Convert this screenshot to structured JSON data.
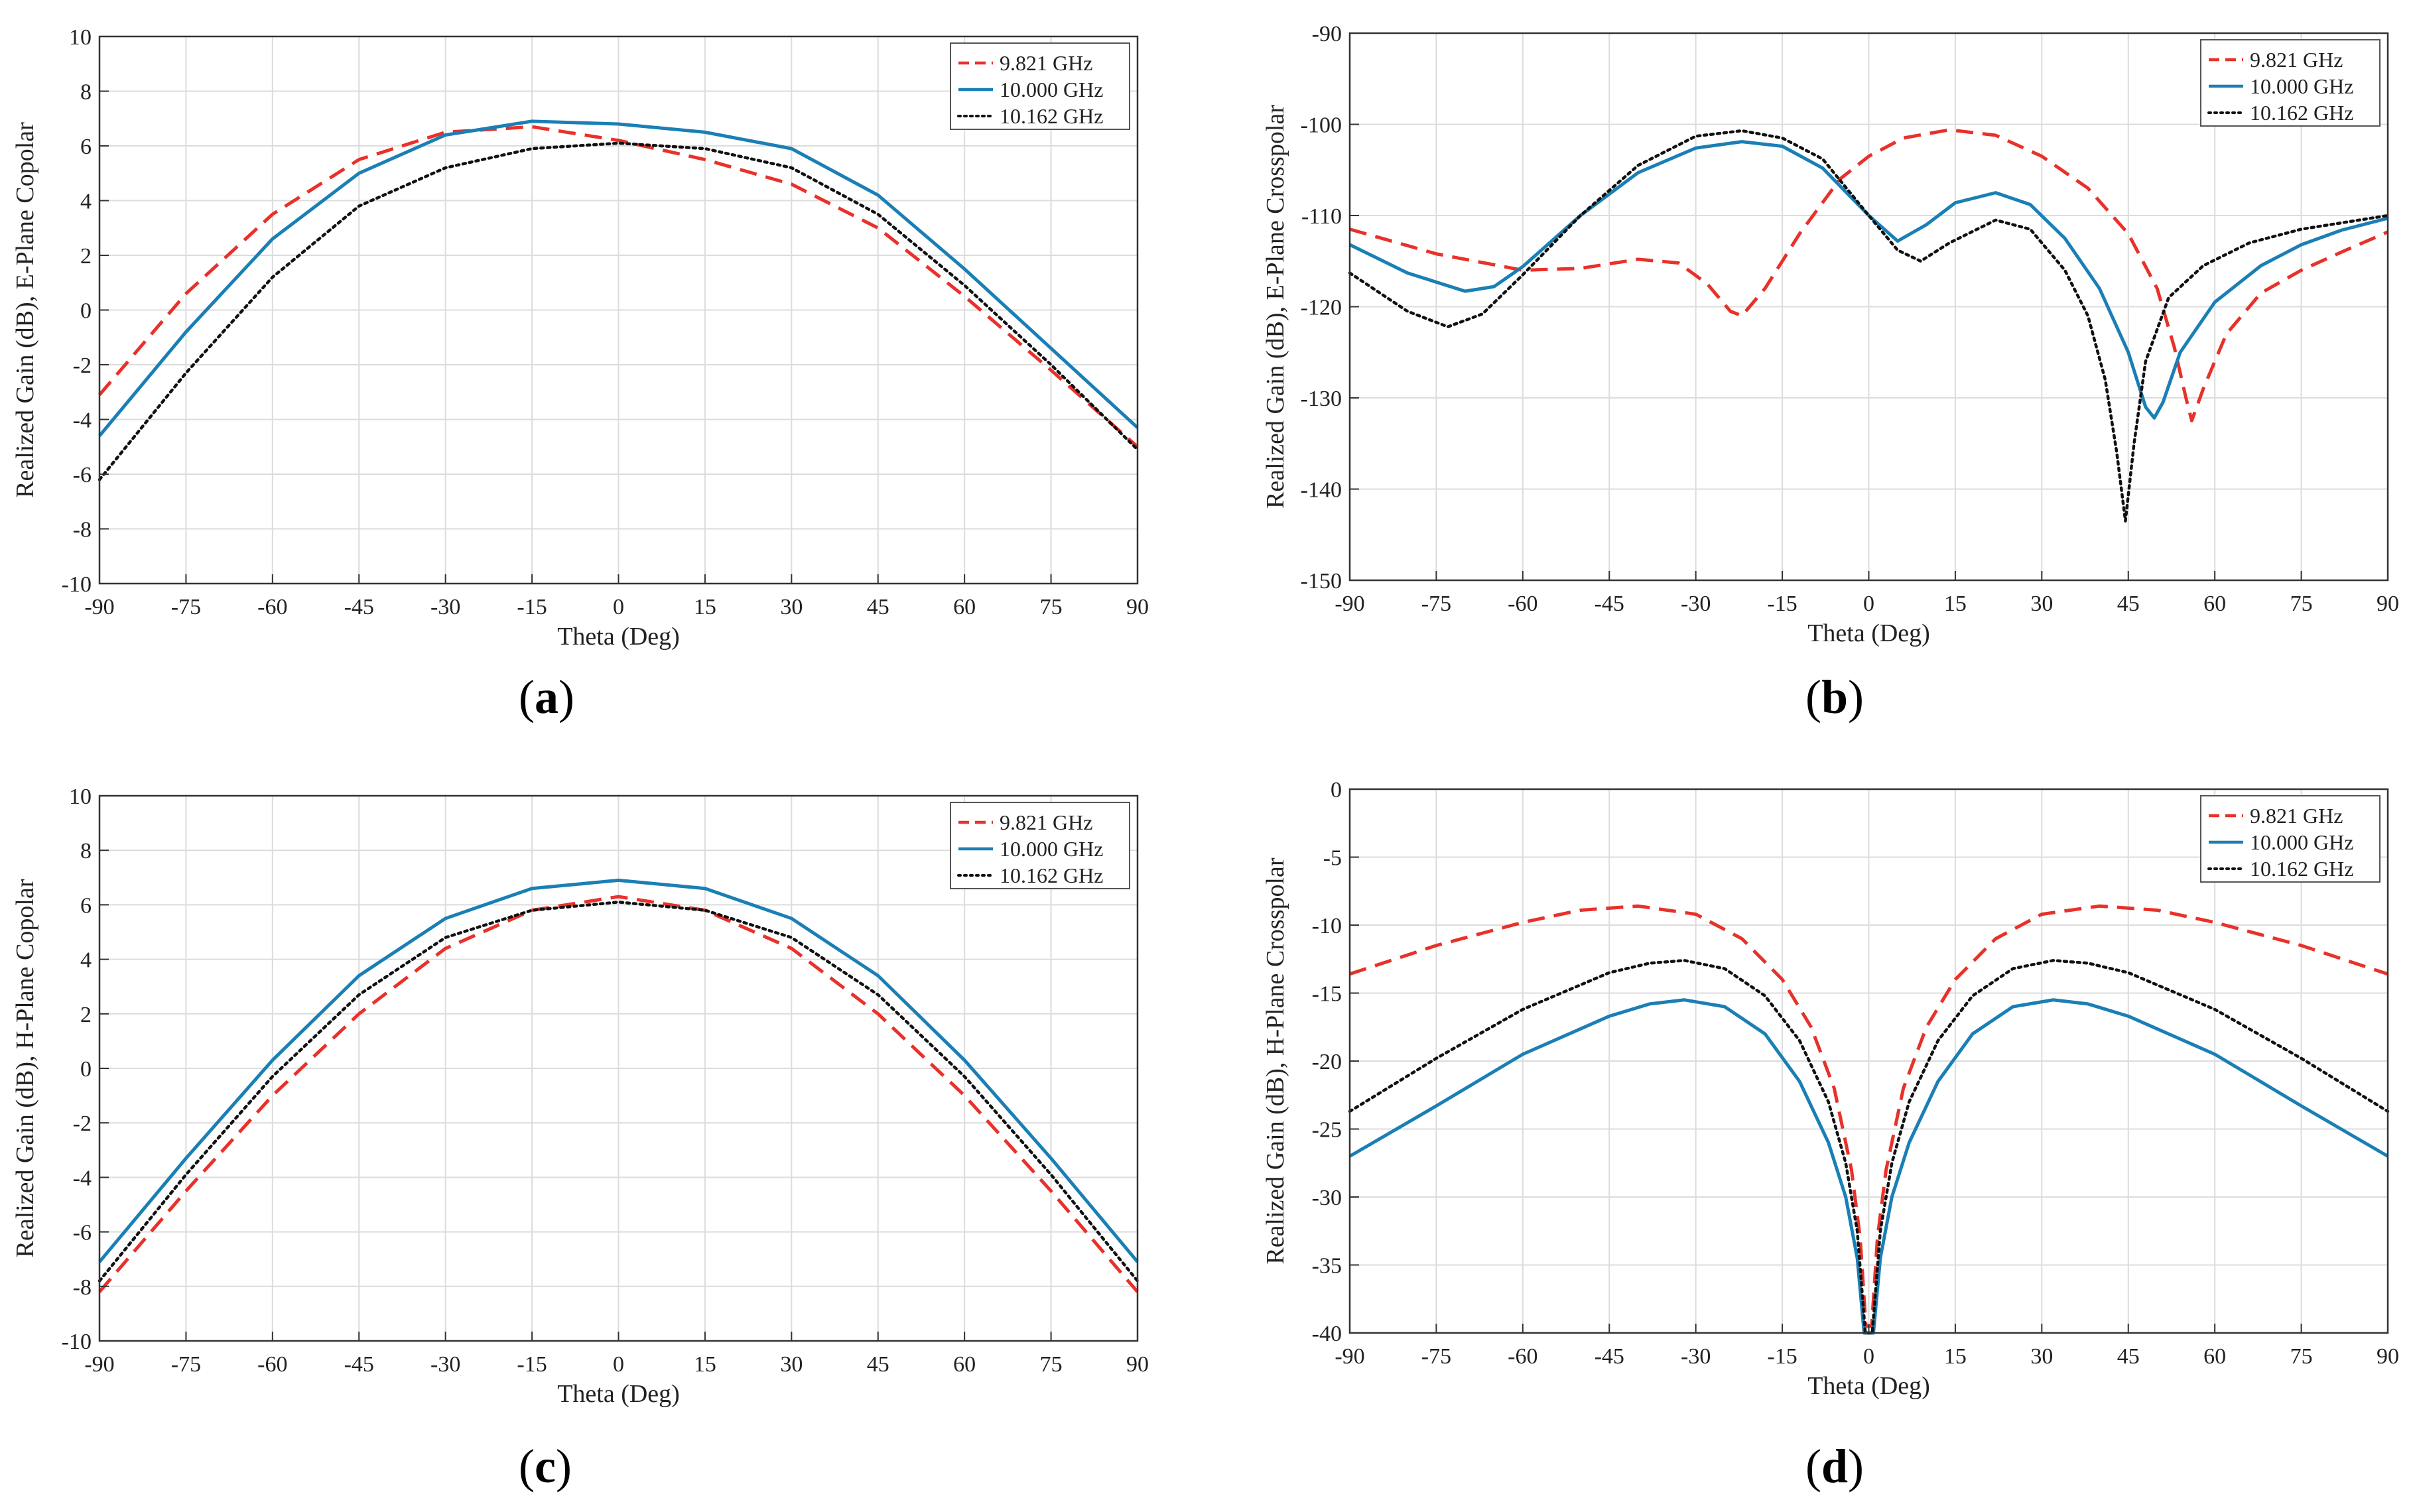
{
  "figure": {
    "panels": [
      {
        "label": "a"
      },
      {
        "label": "b"
      },
      {
        "label": "c"
      },
      {
        "label": "d"
      }
    ]
  },
  "legend_colors": {
    "9.821 GHz": "#e8312a",
    "10.000 GHz": "#1a7fb5",
    "10.162 GHz": "#111111"
  },
  "chart_data": [
    {
      "type": "line",
      "panel": "a",
      "xlabel": "Theta (Deg)",
      "ylabel": "Realized Gain (dB), E-Plane Copolar",
      "xlim": [
        -90,
        90
      ],
      "ylim": [
        -10,
        10
      ],
      "xticks": [
        -90,
        -75,
        -60,
        -45,
        -30,
        -15,
        0,
        15,
        30,
        45,
        60,
        75,
        90
      ],
      "yticks": [
        -10,
        -8,
        -6,
        -4,
        -2,
        0,
        2,
        4,
        6,
        8,
        10
      ],
      "grid": true,
      "legend_position": "top-right",
      "x": [
        -90,
        -75,
        -60,
        -45,
        -30,
        -15,
        0,
        15,
        30,
        45,
        60,
        75,
        90
      ],
      "series": [
        {
          "name": "9.821 GHz",
          "style": "dashed",
          "color": "#e8312a",
          "values": [
            -3.1,
            0.6,
            3.5,
            5.5,
            6.5,
            6.7,
            6.2,
            5.5,
            4.6,
            3.0,
            0.5,
            -2.2,
            -5.0
          ]
        },
        {
          "name": "10.000 GHz",
          "style": "solid",
          "color": "#1a7fb5",
          "values": [
            -4.6,
            -0.8,
            2.6,
            5.0,
            6.4,
            6.9,
            6.8,
            6.5,
            5.9,
            4.2,
            1.5,
            -1.4,
            -4.3
          ]
        },
        {
          "name": "10.162 GHz",
          "style": "dotted",
          "color": "#111111",
          "values": [
            -6.2,
            -2.3,
            1.2,
            3.8,
            5.2,
            5.9,
            6.1,
            5.9,
            5.2,
            3.5,
            0.9,
            -2.0,
            -5.1
          ]
        }
      ]
    },
    {
      "type": "line",
      "panel": "b",
      "xlabel": "Theta (Deg)",
      "ylabel": "Realized Gain (dB), E-Plane Crosspolar",
      "xlim": [
        -90,
        90
      ],
      "ylim": [
        -150,
        -90
      ],
      "xticks": [
        -90,
        -75,
        -60,
        -45,
        -30,
        -15,
        0,
        15,
        30,
        45,
        60,
        75,
        90
      ],
      "yticks": [
        -150,
        -140,
        -130,
        -120,
        -110,
        -100,
        -90
      ],
      "grid": true,
      "legend_position": "top-right",
      "series": [
        {
          "name": "9.821 GHz",
          "style": "dashed",
          "color": "#e8312a",
          "x": [
            -90,
            -75,
            -60,
            -50,
            -40,
            -33,
            -28,
            -24,
            -22,
            -18,
            -12,
            -5,
            0,
            6,
            14,
            22,
            30,
            38,
            45,
            50,
            53,
            55,
            56,
            58,
            62,
            68,
            75,
            82,
            90
          ],
          "values": [
            -111.5,
            -114.2,
            -116.0,
            -115.8,
            -114.8,
            -115.2,
            -117.5,
            -120.5,
            -121.0,
            -118.0,
            -112.0,
            -106.0,
            -103.5,
            -101.5,
            -100.6,
            -101.2,
            -103.5,
            -107.0,
            -112.0,
            -118.0,
            -124.5,
            -130.0,
            -132.5,
            -129.0,
            -123.0,
            -118.5,
            -116.0,
            -114.0,
            -111.8
          ]
        },
        {
          "name": "10.000 GHz",
          "style": "solid",
          "color": "#1a7fb5",
          "x": [
            -90,
            -80,
            -70,
            -65,
            -60,
            -50,
            -40,
            -30,
            -22,
            -15,
            -8,
            0,
            5,
            10,
            15,
            22,
            28,
            34,
            40,
            45,
            48,
            49.5,
            51,
            54,
            60,
            68,
            75,
            82,
            90
          ],
          "values": [
            -113.2,
            -116.3,
            -118.3,
            -117.8,
            -115.6,
            -110.0,
            -105.3,
            -102.6,
            -101.9,
            -102.4,
            -104.8,
            -110.0,
            -112.8,
            -111.0,
            -108.6,
            -107.5,
            -108.8,
            -112.5,
            -118.0,
            -125.0,
            -131.0,
            -132.2,
            -130.5,
            -125.0,
            -119.5,
            -115.5,
            -113.2,
            -111.6,
            -110.3
          ]
        },
        {
          "name": "10.162 GHz",
          "style": "dotted",
          "color": "#111111",
          "x": [
            -90,
            -80,
            -73,
            -67,
            -60,
            -50,
            -40,
            -30,
            -22,
            -15,
            -8,
            0,
            5,
            9,
            14,
            22,
            28,
            34,
            38,
            41,
            43,
            44.5,
            46,
            48,
            52,
            58,
            66,
            75,
            82,
            90
          ],
          "values": [
            -116.3,
            -120.5,
            -122.2,
            -120.8,
            -116.5,
            -110.0,
            -104.5,
            -101.3,
            -100.7,
            -101.5,
            -103.8,
            -110.0,
            -113.8,
            -115.0,
            -113.0,
            -110.5,
            -111.5,
            -116.0,
            -121.0,
            -128.0,
            -136.0,
            -143.5,
            -135.0,
            -126.0,
            -119.0,
            -115.5,
            -113.0,
            -111.5,
            -110.8,
            -110.0
          ]
        }
      ]
    },
    {
      "type": "line",
      "panel": "c",
      "xlabel": "Theta (Deg)",
      "ylabel": "Realized Gain (dB), H-Plane Copolar",
      "xlim": [
        -90,
        90
      ],
      "ylim": [
        -10,
        10
      ],
      "xticks": [
        -90,
        -75,
        -60,
        -45,
        -30,
        -15,
        0,
        15,
        30,
        45,
        60,
        75,
        90
      ],
      "yticks": [
        -10,
        -8,
        -6,
        -4,
        -2,
        0,
        2,
        4,
        6,
        8,
        10
      ],
      "grid": true,
      "legend_position": "top-right",
      "x": [
        -90,
        -75,
        -60,
        -45,
        -30,
        -15,
        0,
        15,
        30,
        45,
        60,
        75,
        90
      ],
      "series": [
        {
          "name": "9.821 GHz",
          "style": "dashed",
          "color": "#e8312a",
          "values": [
            -8.2,
            -4.5,
            -1.0,
            2.0,
            4.4,
            5.8,
            6.3,
            5.8,
            4.4,
            2.0,
            -1.0,
            -4.5,
            -8.2
          ]
        },
        {
          "name": "10.000 GHz",
          "style": "solid",
          "color": "#1a7fb5",
          "values": [
            -7.1,
            -3.3,
            0.3,
            3.4,
            5.5,
            6.6,
            6.9,
            6.6,
            5.5,
            3.4,
            0.3,
            -3.3,
            -7.1
          ]
        },
        {
          "name": "10.162 GHz",
          "style": "dotted",
          "color": "#111111",
          "values": [
            -7.8,
            -3.9,
            -0.3,
            2.7,
            4.8,
            5.8,
            6.1,
            5.8,
            4.8,
            2.7,
            -0.3,
            -3.9,
            -7.8
          ]
        }
      ]
    },
    {
      "type": "line",
      "panel": "d",
      "xlabel": "Theta (Deg)",
      "ylabel": "Realized Gain (dB), H-Plane Crosspolar",
      "xlim": [
        -90,
        90
      ],
      "ylim": [
        -40,
        0
      ],
      "xticks": [
        -90,
        -75,
        -60,
        -45,
        -30,
        -15,
        0,
        15,
        30,
        45,
        60,
        75,
        90
      ],
      "yticks": [
        -40,
        -35,
        -30,
        -25,
        -20,
        -15,
        -10,
        -5,
        0
      ],
      "grid": true,
      "legend_position": "top-right",
      "series": [
        {
          "name": "9.821 GHz",
          "style": "dashed",
          "color": "#e8312a",
          "x": [
            -90,
            -75,
            -60,
            -50,
            -40,
            -30,
            -22,
            -15,
            -10,
            -6,
            -3,
            -1.5,
            -0.5,
            0.5,
            1.5,
            3,
            6,
            10,
            15,
            22,
            30,
            40,
            50,
            60,
            75,
            90
          ],
          "values": [
            -13.6,
            -11.5,
            -9.8,
            -8.9,
            -8.6,
            -9.2,
            -11.0,
            -14.0,
            -17.5,
            -22.0,
            -28.0,
            -33.0,
            -39.5,
            -39.5,
            -33.0,
            -28.0,
            -22.0,
            -17.5,
            -14.0,
            -11.0,
            -9.2,
            -8.6,
            -8.9,
            -9.8,
            -11.5,
            -13.6
          ]
        },
        {
          "name": "10.000 GHz",
          "style": "solid",
          "color": "#1a7fb5",
          "x": [
            -90,
            -75,
            -60,
            -45,
            -38,
            -32,
            -25,
            -18,
            -12,
            -7,
            -4,
            -2,
            -0.8,
            0.8,
            2,
            4,
            7,
            12,
            18,
            25,
            32,
            38,
            45,
            60,
            75,
            90
          ],
          "values": [
            -27.0,
            -23.3,
            -19.5,
            -16.7,
            -15.8,
            -15.5,
            -16.0,
            -18.0,
            -21.5,
            -26.0,
            -30.0,
            -34.5,
            -40.0,
            -40.0,
            -34.5,
            -30.0,
            -26.0,
            -21.5,
            -18.0,
            -16.0,
            -15.5,
            -15.8,
            -16.7,
            -19.5,
            -23.3,
            -27.0
          ]
        },
        {
          "name": "10.162 GHz",
          "style": "dotted",
          "color": "#111111",
          "x": [
            -90,
            -75,
            -60,
            -45,
            -38,
            -32,
            -25,
            -18,
            -12,
            -7,
            -4,
            -2,
            -0.6,
            0.6,
            2,
            4,
            7,
            12,
            18,
            25,
            32,
            38,
            45,
            60,
            75,
            90
          ],
          "values": [
            -23.7,
            -19.8,
            -16.2,
            -13.5,
            -12.8,
            -12.6,
            -13.2,
            -15.2,
            -18.5,
            -23.0,
            -27.5,
            -32.5,
            -40.0,
            -40.0,
            -32.5,
            -27.5,
            -23.0,
            -18.5,
            -15.2,
            -13.2,
            -12.6,
            -12.8,
            -13.5,
            -16.2,
            -19.8,
            -23.7
          ]
        }
      ]
    }
  ]
}
